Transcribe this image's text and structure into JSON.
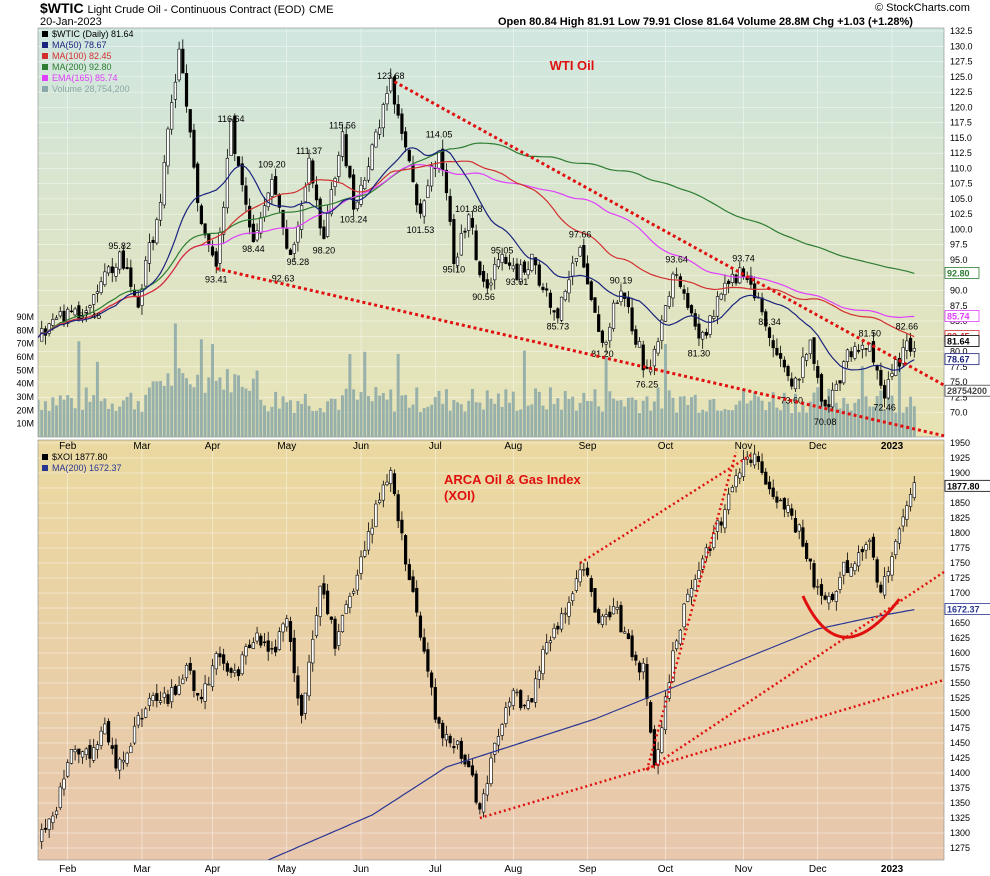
{
  "header": {
    "symbol": "$WTIC",
    "name": "Light Crude Oil - Continuous Contract (EOD)",
    "exchange": "CME",
    "date": "20-Jan-2023",
    "ohlc": "Open 80.84  High 81.91  Low 79.91  Close 81.64  Volume 28.8M  Chg +1.03 (+1.28%)",
    "watermark": "© StockCharts.com"
  },
  "colors": {
    "top_bg_top": "#cfe6df",
    "top_bg_bottom": "#e8e3b4",
    "bottom_bg_top": "#ead9a0",
    "bottom_bg_bottom": "#e8c7ad",
    "ma50": "#1a237e",
    "ma100": "#d32f2f",
    "ma200_top": "#2e7d32",
    "ema165": "#e040fb",
    "volume": "#8aa8a8",
    "trend": "#e01010",
    "ma200_bottom": "#283593"
  },
  "chart_data": [
    {
      "type": "candlestick",
      "panel": "WTI Oil",
      "title": "WTI Oil",
      "legend": [
        {
          "label": "$WTIC (Daily) 81.64",
          "color": "#000000"
        },
        {
          "label": "MA(50) 78.67",
          "color": "#1a237e"
        },
        {
          "label": "MA(100) 82.45",
          "color": "#d32f2f"
        },
        {
          "label": "MA(200) 92.80",
          "color": "#2e7d32"
        },
        {
          "label": "EMA(165) 85.74",
          "color": "#e040fb"
        },
        {
          "label": "Volume 28,754,200",
          "color": "#8aa8a8"
        }
      ],
      "x_ticks": [
        "Feb",
        "Mar",
        "Apr",
        "May",
        "Jun",
        "Jul",
        "Aug",
        "Sep",
        "Oct",
        "Nov",
        "Dec",
        "2023"
      ],
      "y_range": [
        66,
        133
      ],
      "y_ticks": [
        "132.5",
        "130.0",
        "127.5",
        "125.0",
        "122.5",
        "120.0",
        "117.5",
        "115.0",
        "112.5",
        "110.0",
        "107.5",
        "105.0",
        "102.5",
        "100.0",
        "97.5",
        "95.0",
        "92.5",
        "90.0",
        "87.5",
        "85.0",
        "82.5",
        "80.0",
        "77.5",
        "75.0",
        "72.5",
        "70.0"
      ],
      "volume_ticks": [
        "90M",
        "80M",
        "70M",
        "60M",
        "50M",
        "40M",
        "30M",
        "20M",
        "10M"
      ],
      "price_anchors": [
        {
          "i": 0,
          "v": 83.5
        },
        {
          "i": 14,
          "v": 87.5
        },
        {
          "i": 22,
          "v": 95.8
        },
        {
          "i": 27,
          "v": 88
        },
        {
          "i": 33,
          "v": 105
        },
        {
          "i": 38,
          "v": 130
        },
        {
          "i": 44,
          "v": 100
        },
        {
          "i": 48,
          "v": 93.4
        },
        {
          "i": 52,
          "v": 116.6
        },
        {
          "i": 58,
          "v": 98.4
        },
        {
          "i": 63,
          "v": 109.2
        },
        {
          "i": 68,
          "v": 95.3
        },
        {
          "i": 73,
          "v": 111.4
        },
        {
          "i": 77,
          "v": 98.2
        },
        {
          "i": 82,
          "v": 115.6
        },
        {
          "i": 85,
          "v": 103.2
        },
        {
          "i": 95,
          "v": 123.7
        },
        {
          "i": 100,
          "v": 110
        },
        {
          "i": 103,
          "v": 101.5
        },
        {
          "i": 108,
          "v": 114.05
        },
        {
          "i": 112,
          "v": 95.1
        },
        {
          "i": 116,
          "v": 101.9
        },
        {
          "i": 120,
          "v": 90.6
        },
        {
          "i": 125,
          "v": 95
        },
        {
          "i": 129,
          "v": 93
        },
        {
          "i": 133,
          "v": 95
        },
        {
          "i": 140,
          "v": 85.7
        },
        {
          "i": 146,
          "v": 97.7
        },
        {
          "i": 152,
          "v": 81.2
        },
        {
          "i": 157,
          "v": 90.2
        },
        {
          "i": 164,
          "v": 76.25
        },
        {
          "i": 172,
          "v": 93.6
        },
        {
          "i": 178,
          "v": 81.3
        },
        {
          "i": 184,
          "v": 89
        },
        {
          "i": 190,
          "v": 93.74
        },
        {
          "i": 197,
          "v": 83.3
        },
        {
          "i": 203,
          "v": 73.6
        },
        {
          "i": 208,
          "v": 81
        },
        {
          "i": 212,
          "v": 70.08
        },
        {
          "i": 218,
          "v": 79
        },
        {
          "i": 224,
          "v": 81.5
        },
        {
          "i": 228,
          "v": 72.46
        },
        {
          "i": 232,
          "v": 79
        },
        {
          "i": 236,
          "v": 81.64
        }
      ],
      "labels": [
        {
          "text": "95.82",
          "i": 22,
          "v": 95.82,
          "side": "above"
        },
        {
          "text": "87.46",
          "i": 14,
          "v": 87.46,
          "side": "below"
        },
        {
          "text": "116.64",
          "i": 52,
          "v": 116.64,
          "side": "above"
        },
        {
          "text": "98.44",
          "i": 58,
          "v": 98.44,
          "side": "below"
        },
        {
          "text": "93.41",
          "i": 48,
          "v": 93.41,
          "side": "below"
        },
        {
          "text": "109.20",
          "i": 63,
          "v": 109.2,
          "side": "above"
        },
        {
          "text": "92.63",
          "i": 66,
          "v": 93.6,
          "side": "below"
        },
        {
          "text": "95.28",
          "i": 70,
          "v": 96.3,
          "side": "below"
        },
        {
          "text": "111.37",
          "i": 73,
          "v": 111.37,
          "side": "above"
        },
        {
          "text": "98.20",
          "i": 77,
          "v": 98.2,
          "side": "below"
        },
        {
          "text": "115.56",
          "i": 82,
          "v": 115.56,
          "side": "above"
        },
        {
          "text": "103.24",
          "i": 85,
          "v": 103.24,
          "side": "below"
        },
        {
          "text": "123.68",
          "i": 95,
          "v": 123.68,
          "side": "above"
        },
        {
          "text": "114.05",
          "i": 108,
          "v": 114.05,
          "side": "above"
        },
        {
          "text": "101.53",
          "i": 103,
          "v": 101.53,
          "side": "below"
        },
        {
          "text": "95.10",
          "i": 112,
          "v": 95.1,
          "side": "below"
        },
        {
          "text": "101.88",
          "i": 116,
          "v": 101.88,
          "side": "above"
        },
        {
          "text": "90.56",
          "i": 120,
          "v": 90.56,
          "side": "below"
        },
        {
          "text": "95.05",
          "i": 125,
          "v": 95.05,
          "side": "above"
        },
        {
          "text": "93.01",
          "i": 129,
          "v": 93.01,
          "side": "below"
        },
        {
          "text": "97.66",
          "i": 146,
          "v": 97.66,
          "side": "above"
        },
        {
          "text": "85.73",
          "i": 140,
          "v": 85.73,
          "side": "below"
        },
        {
          "text": "90.19",
          "i": 157,
          "v": 90.19,
          "side": "above"
        },
        {
          "text": "81.20",
          "i": 152,
          "v": 81.2,
          "side": "below"
        },
        {
          "text": "93.64",
          "i": 172,
          "v": 93.64,
          "side": "above"
        },
        {
          "text": "76.25",
          "i": 164,
          "v": 76.25,
          "side": "below"
        },
        {
          "text": "81.30",
          "i": 178,
          "v": 81.3,
          "side": "below"
        },
        {
          "text": "93.74",
          "i": 190,
          "v": 93.74,
          "side": "above"
        },
        {
          "text": "83.34",
          "i": 197,
          "v": 83.34,
          "side": "above"
        },
        {
          "text": "73.60",
          "i": 203,
          "v": 73.6,
          "side": "below"
        },
        {
          "text": "70.08",
          "i": 212,
          "v": 70.08,
          "side": "below"
        },
        {
          "text": "81.50",
          "i": 224,
          "v": 81.5,
          "side": "above"
        },
        {
          "text": "72.46",
          "i": 228,
          "v": 72.46,
          "side": "below"
        },
        {
          "text": "82.66",
          "i": 234,
          "v": 82.66,
          "side": "above"
        }
      ],
      "ma_current": {
        "MA50": 78.67,
        "MA100": 82.45,
        "MA200": 92.8,
        "EMA165": 85.74,
        "Close": 81.64
      },
      "axis_tags": [
        {
          "text": "92.80",
          "v": 92.8,
          "color": "#2e7d32"
        },
        {
          "text": "85.74",
          "v": 85.74,
          "color": "#e040fb"
        },
        {
          "text": "82.45",
          "v": 82.45,
          "color": "#d32f2f"
        },
        {
          "text": "81.64",
          "v": 81.64,
          "color": "#000000"
        },
        {
          "text": "78.67",
          "v": 78.67,
          "color": "#1a237e"
        },
        {
          "text": "28754200",
          "v": 73.5,
          "color": "#444444"
        }
      ],
      "trendlines": [
        {
          "from": {
            "i": 96,
            "v": 124.2
          },
          "to": {
            "i": 244,
            "v": 74.5
          }
        },
        {
          "from": {
            "i": 48,
            "v": 93.6
          },
          "to": {
            "i": 244,
            "v": 66.2
          }
        }
      ]
    },
    {
      "type": "candlestick",
      "panel": "ARCA Oil & Gas Index",
      "title": "ARCA Oil & Gas Index\n(XOI)",
      "legend": [
        {
          "label": "$XOI 1877.80",
          "color": "#000000"
        },
        {
          "label": "MA(200) 1672.37",
          "color": "#283593"
        }
      ],
      "x_ticks": [
        "Feb",
        "Mar",
        "Apr",
        "May",
        "Jun",
        "Jul",
        "Aug",
        "Sep",
        "Oct",
        "Nov",
        "Dec",
        "2023"
      ],
      "y_range": [
        1255,
        1955
      ],
      "y_ticks": [
        "1950",
        "1925",
        "1900",
        "1875",
        "1850",
        "1825",
        "1800",
        "1775",
        "1750",
        "1725",
        "1700",
        "1675",
        "1650",
        "1625",
        "1600",
        "1575",
        "1550",
        "1525",
        "1500",
        "1475",
        "1450",
        "1425",
        "1400",
        "1375",
        "1350",
        "1325",
        "1300",
        "1275"
      ],
      "price_anchors": [
        {
          "i": 0,
          "v": 1290
        },
        {
          "i": 5,
          "v": 1350
        },
        {
          "i": 10,
          "v": 1445
        },
        {
          "i": 14,
          "v": 1430
        },
        {
          "i": 18,
          "v": 1475
        },
        {
          "i": 21,
          "v": 1410
        },
        {
          "i": 26,
          "v": 1470
        },
        {
          "i": 30,
          "v": 1520
        },
        {
          "i": 35,
          "v": 1520
        },
        {
          "i": 40,
          "v": 1570
        },
        {
          "i": 44,
          "v": 1520
        },
        {
          "i": 48,
          "v": 1590
        },
        {
          "i": 53,
          "v": 1560
        },
        {
          "i": 58,
          "v": 1630
        },
        {
          "i": 63,
          "v": 1600
        },
        {
          "i": 67,
          "v": 1650
        },
        {
          "i": 71,
          "v": 1500
        },
        {
          "i": 76,
          "v": 1720
        },
        {
          "i": 80,
          "v": 1620
        },
        {
          "i": 85,
          "v": 1700
        },
        {
          "i": 90,
          "v": 1820
        },
        {
          "i": 95,
          "v": 1910
        },
        {
          "i": 100,
          "v": 1720
        },
        {
          "i": 104,
          "v": 1600
        },
        {
          "i": 108,
          "v": 1470
        },
        {
          "i": 112,
          "v": 1450
        },
        {
          "i": 116,
          "v": 1420
        },
        {
          "i": 119,
          "v": 1330
        },
        {
          "i": 123,
          "v": 1460
        },
        {
          "i": 128,
          "v": 1530
        },
        {
          "i": 132,
          "v": 1510
        },
        {
          "i": 136,
          "v": 1600
        },
        {
          "i": 140,
          "v": 1650
        },
        {
          "i": 144,
          "v": 1700
        },
        {
          "i": 147,
          "v": 1745
        },
        {
          "i": 151,
          "v": 1640
        },
        {
          "i": 155,
          "v": 1680
        },
        {
          "i": 159,
          "v": 1610
        },
        {
          "i": 163,
          "v": 1570
        },
        {
          "i": 166,
          "v": 1410
        },
        {
          "i": 170,
          "v": 1560
        },
        {
          "i": 174,
          "v": 1680
        },
        {
          "i": 179,
          "v": 1760
        },
        {
          "i": 184,
          "v": 1820
        },
        {
          "i": 188,
          "v": 1900
        },
        {
          "i": 192,
          "v": 1930
        },
        {
          "i": 197,
          "v": 1880
        },
        {
          "i": 201,
          "v": 1850
        },
        {
          "i": 205,
          "v": 1800
        },
        {
          "i": 209,
          "v": 1720
        },
        {
          "i": 213,
          "v": 1690
        },
        {
          "i": 217,
          "v": 1740
        },
        {
          "i": 221,
          "v": 1760
        },
        {
          "i": 224,
          "v": 1790
        },
        {
          "i": 227,
          "v": 1700
        },
        {
          "i": 231,
          "v": 1780
        },
        {
          "i": 236,
          "v": 1877.8
        }
      ],
      "ma200": [
        {
          "i": 62,
          "v": 1255
        },
        {
          "i": 90,
          "v": 1330
        },
        {
          "i": 110,
          "v": 1410
        },
        {
          "i": 130,
          "v": 1450
        },
        {
          "i": 150,
          "v": 1490
        },
        {
          "i": 170,
          "v": 1540
        },
        {
          "i": 190,
          "v": 1590
        },
        {
          "i": 210,
          "v": 1640
        },
        {
          "i": 225,
          "v": 1660
        },
        {
          "i": 236,
          "v": 1672.37
        }
      ],
      "axis_tags": [
        {
          "text": "1877.80",
          "v": 1877.8,
          "color": "#000000"
        },
        {
          "text": "1672.37",
          "v": 1672.37,
          "color": "#283593"
        }
      ],
      "trendlines": [
        {
          "from": {
            "i": 119,
            "v": 1325
          },
          "to": {
            "i": 244,
            "v": 1555
          }
        },
        {
          "from": {
            "i": 164,
            "v": 1405
          },
          "to": {
            "i": 244,
            "v": 1735
          }
        },
        {
          "from": {
            "i": 164,
            "v": 1405
          },
          "to": {
            "i": 188,
            "v": 1935
          }
        },
        {
          "from": {
            "i": 146,
            "v": 1750
          },
          "to": {
            "i": 192,
            "v": 1930
          }
        }
      ]
    }
  ]
}
